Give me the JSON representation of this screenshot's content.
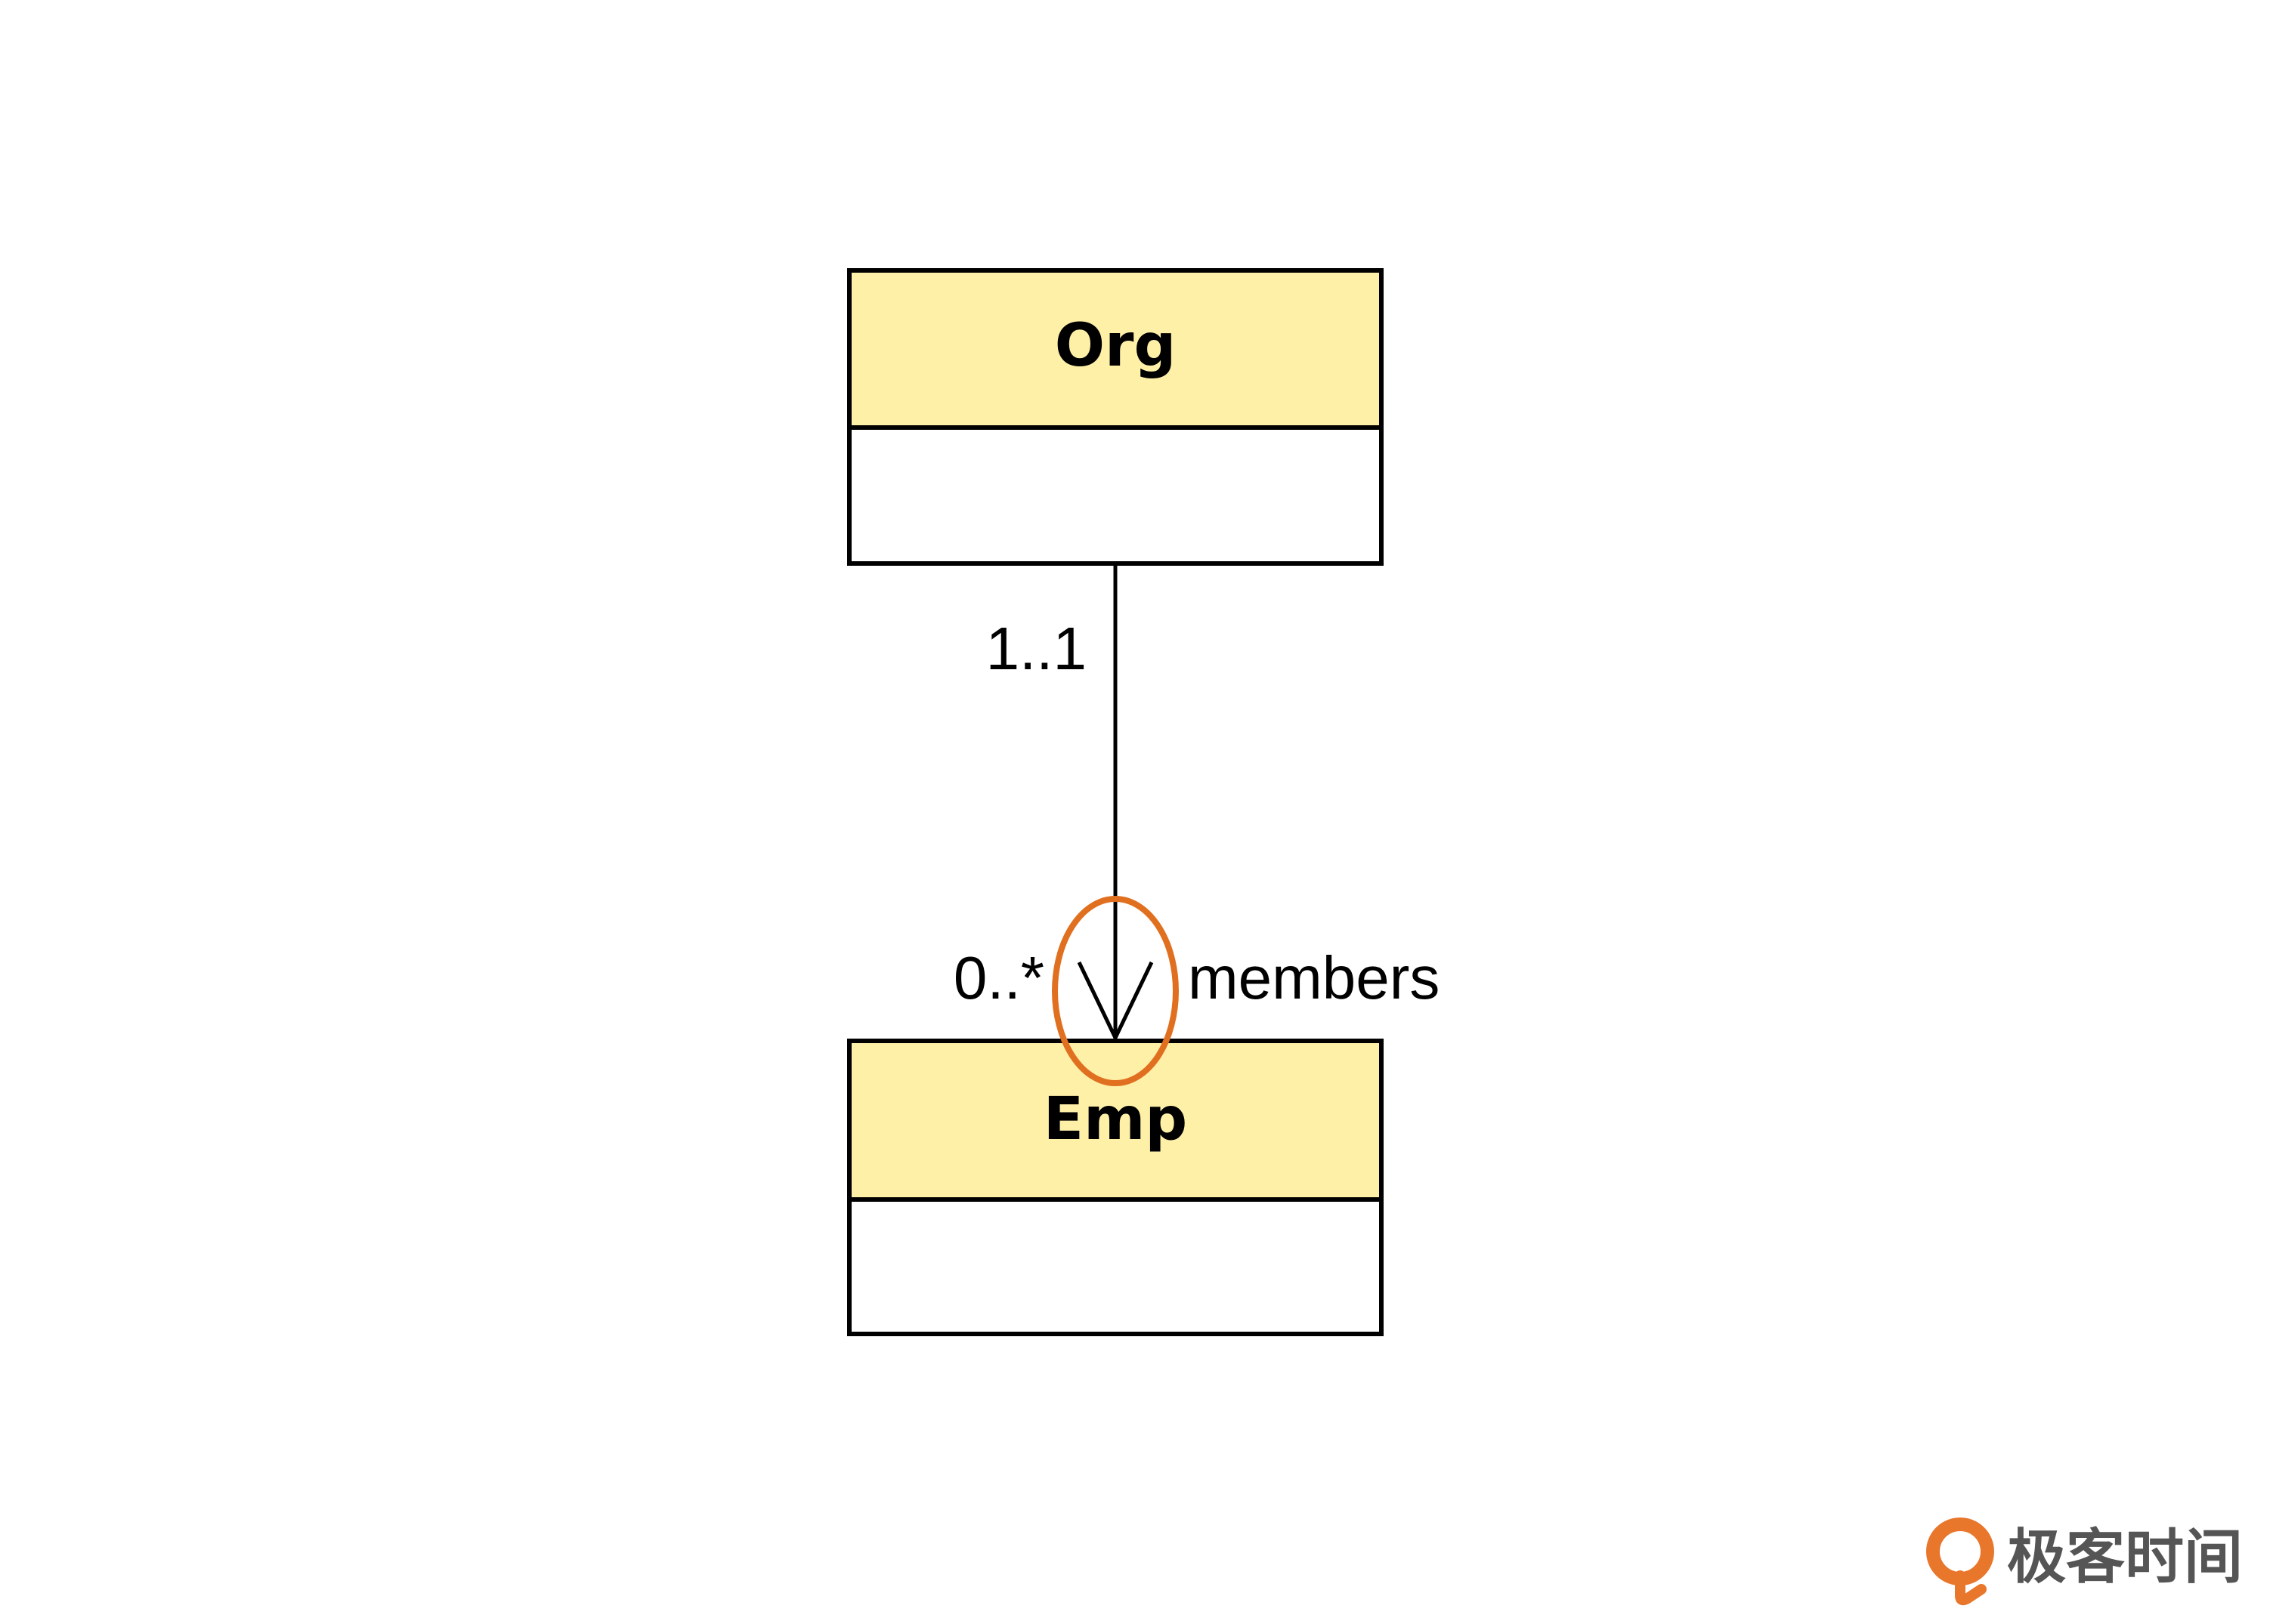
{
  "diagram": {
    "classes": [
      {
        "id": "org",
        "name": "Org"
      },
      {
        "id": "emp",
        "name": "Emp"
      }
    ],
    "association": {
      "from": "Org",
      "to": "Emp",
      "navigable_end": "Emp",
      "source_multiplicity": "1..1",
      "target_multiplicity": "0..*",
      "target_role": "members",
      "highlighted": "arrowhead"
    }
  },
  "colors": {
    "class_header_fill": "#FFF0A8",
    "class_body_fill": "#FFFFFF",
    "stroke": "#000000",
    "highlight": "#E07020",
    "logo_text": "#555555",
    "logo_icon": "#E8762B"
  },
  "watermark": {
    "text": "极客时间",
    "icon": "geektime-logo-icon"
  }
}
